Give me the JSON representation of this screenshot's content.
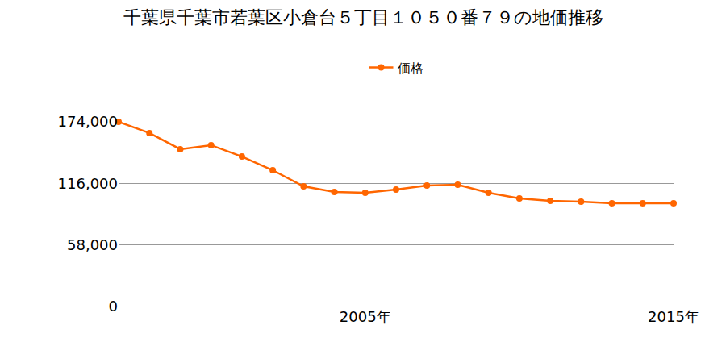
{
  "chart_data": {
    "type": "line",
    "title": "千葉県千葉市若葉区小倉台５丁目１０５０番７９の地価推移",
    "categories": [
      null,
      null,
      null,
      null,
      null,
      null,
      null,
      null,
      "2005年",
      null,
      null,
      null,
      null,
      null,
      null,
      null,
      null,
      null,
      "2015年"
    ],
    "series": [
      {
        "name": "価格",
        "color": "#ff6600",
        "marker": "circle",
        "values": [
          174000,
          163400,
          148200,
          152000,
          141300,
          128400,
          113200,
          107900,
          107100,
          110200,
          114000,
          114700,
          107100,
          101800,
          99500,
          98800,
          97300,
          97300,
          97300
        ]
      }
    ],
    "ylim": [
      0,
      174000
    ],
    "yticks": [
      0,
      {
        "value": 58000,
        "label": "58,000"
      },
      {
        "value": 116000,
        "label": "116,000"
      },
      {
        "value": 174000,
        "label": "174,000"
      }
    ],
    "grid": true,
    "legend": "top"
  }
}
